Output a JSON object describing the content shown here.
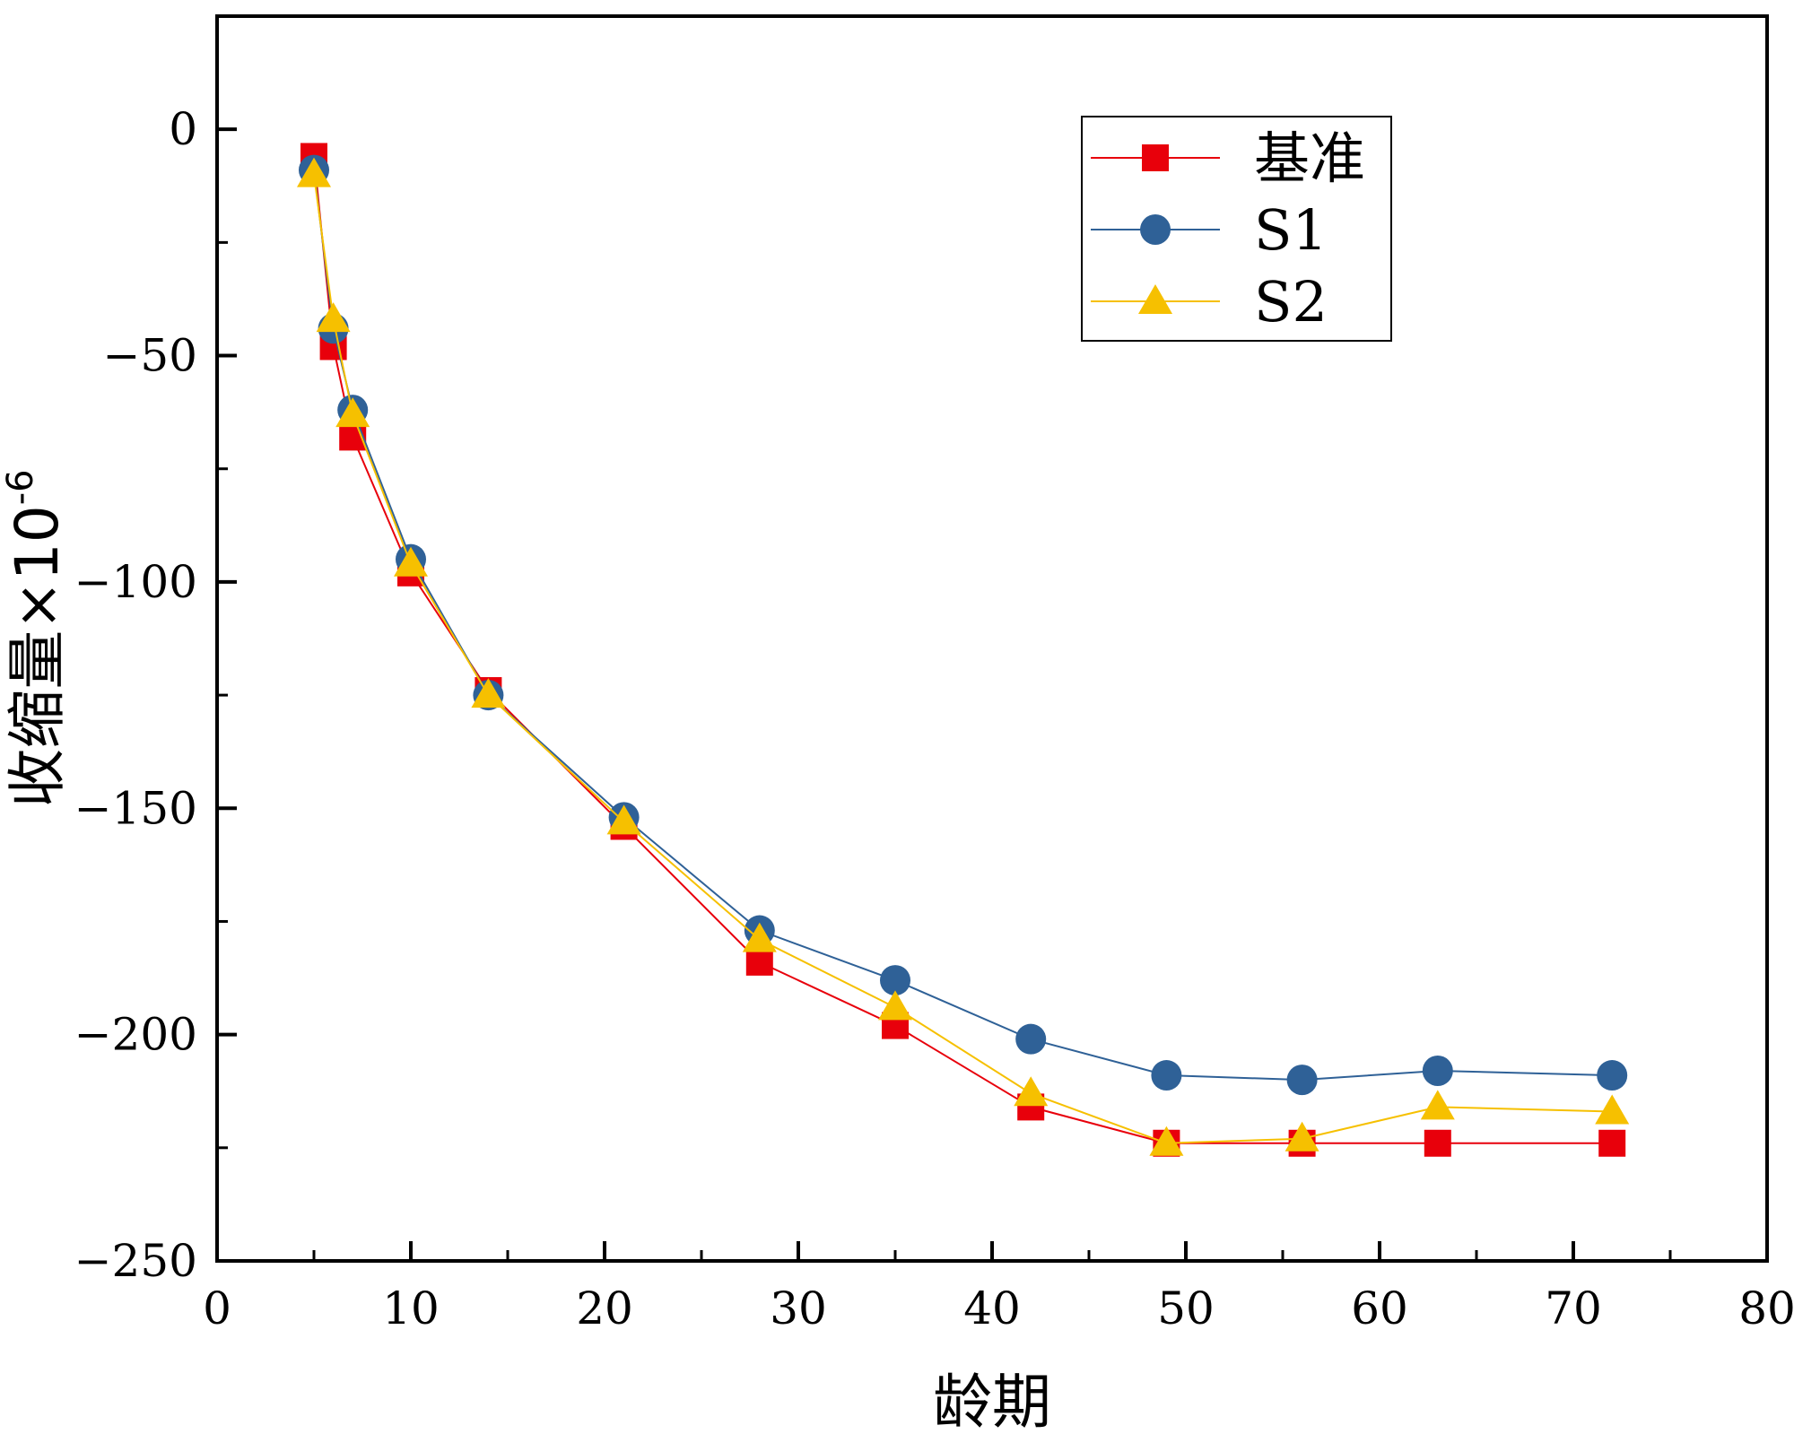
{
  "chart_data": {
    "type": "line",
    "title": "",
    "xlabel": "龄期",
    "ylabel": "收缩量×10",
    "ylabel_exponent": "-6",
    "xlim": [
      0,
      80
    ],
    "ylim": [
      -250,
      25
    ],
    "x_ticks": [
      0,
      10,
      20,
      30,
      40,
      50,
      60,
      70,
      80
    ],
    "y_ticks": [
      0,
      -50,
      -100,
      -150,
      -200,
      -250
    ],
    "x_tick_labels": [
      "0",
      "10",
      "20",
      "30",
      "40",
      "50",
      "60",
      "70",
      "80"
    ],
    "y_tick_labels": [
      "0",
      "-50",
      "-100",
      "-150",
      "-200",
      "-250"
    ],
    "grid": false,
    "legend_position": "top-right",
    "x": [
      5,
      6,
      7,
      10,
      14,
      21,
      28,
      35,
      42,
      49,
      56,
      63,
      72
    ],
    "series": [
      {
        "name": "基准",
        "marker": "square",
        "color": "#e8000b",
        "values": [
          -6,
          -48,
          -68,
          -98,
          -124,
          -154,
          -184,
          -198,
          -216,
          -224,
          -224,
          -224,
          -224
        ]
      },
      {
        "name": "S1",
        "marker": "circle",
        "color": "#2f6197",
        "values": [
          -9,
          -44,
          -62,
          -95,
          -125,
          -152,
          -177,
          -188,
          -201,
          -209,
          -210,
          -208,
          -209
        ]
      },
      {
        "name": "S2",
        "marker": "triangle",
        "color": "#f6c000",
        "values": [
          -10,
          -42,
          -63,
          -96,
          -125,
          -153,
          -179,
          -194,
          -213,
          -224,
          -223,
          -216,
          -217
        ]
      }
    ]
  }
}
